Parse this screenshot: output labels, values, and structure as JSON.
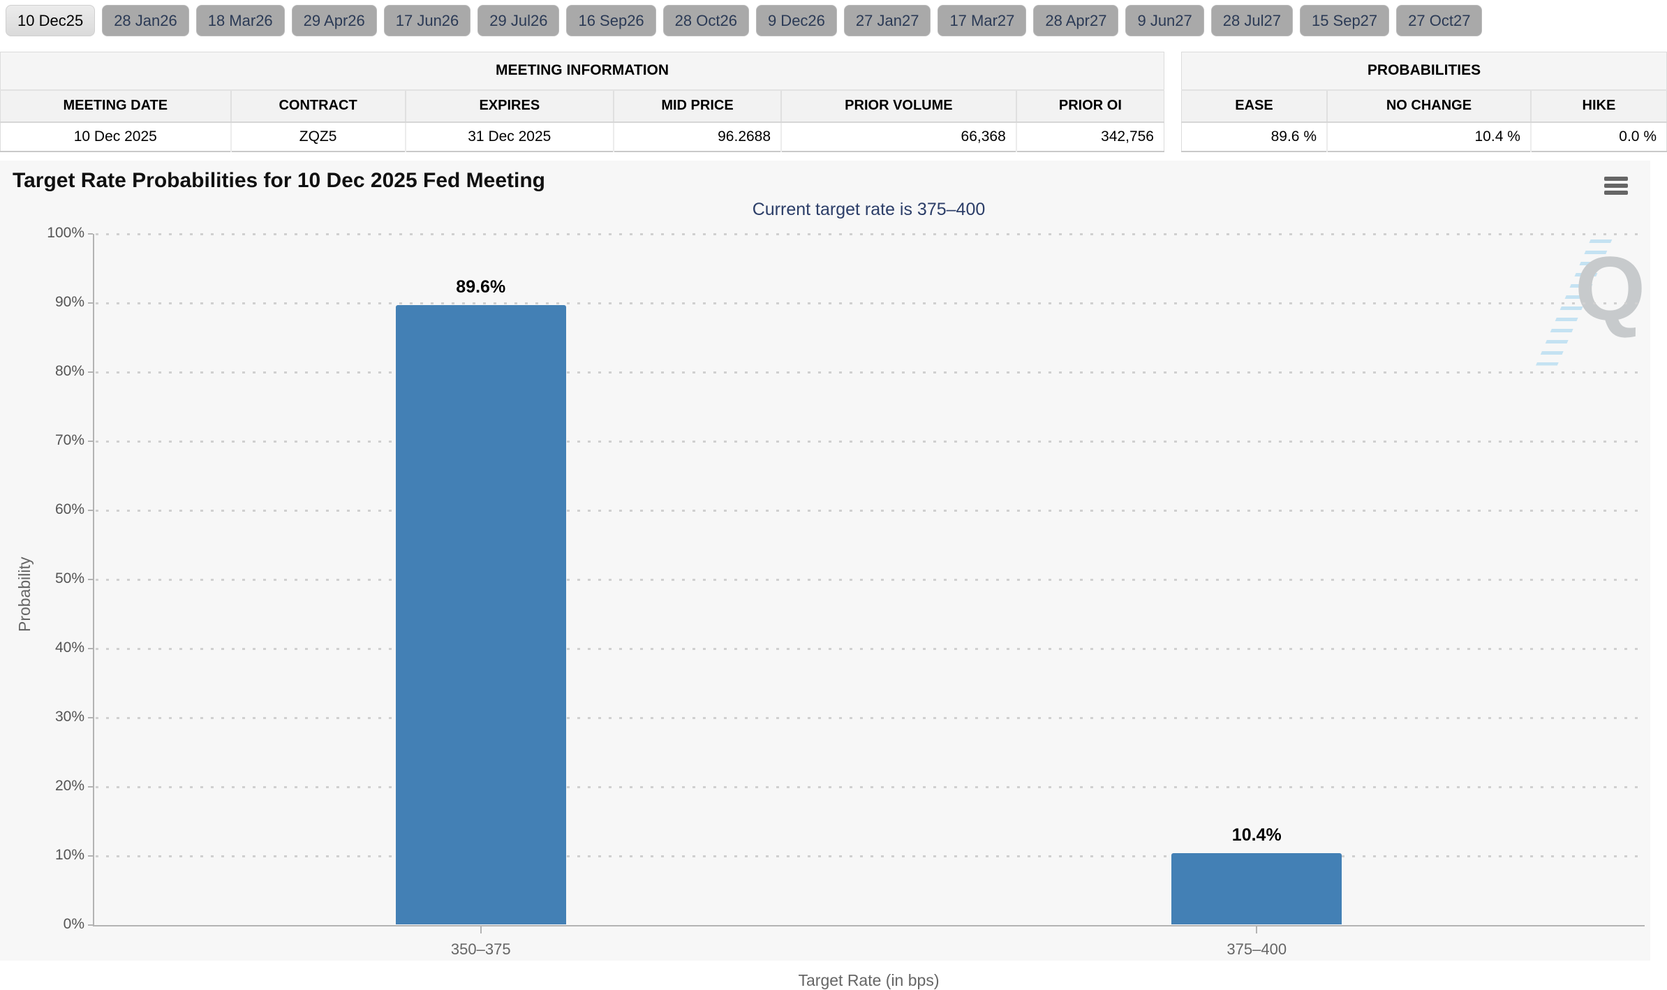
{
  "tabs": {
    "selected": "10 Dec25",
    "items": [
      "10 Dec25",
      "28 Jan26",
      "18 Mar26",
      "29 Apr26",
      "17 Jun26",
      "29 Jul26",
      "16 Sep26",
      "28 Oct26",
      "9 Dec26",
      "27 Jan27",
      "17 Mar27",
      "28 Apr27",
      "9 Jun27",
      "28 Jul27",
      "15 Sep27",
      "27 Oct27"
    ]
  },
  "meeting_information": {
    "title": "MEETING INFORMATION",
    "columns": [
      "MEETING DATE",
      "CONTRACT",
      "EXPIRES",
      "MID PRICE",
      "PRIOR VOLUME",
      "PRIOR OI"
    ],
    "row": [
      "10 Dec 2025",
      "ZQZ5",
      "31 Dec 2025",
      "96.2688",
      "66,368",
      "342,756"
    ]
  },
  "probabilities": {
    "title": "PROBABILITIES",
    "columns": [
      "EASE",
      "NO CHANGE",
      "HIKE"
    ],
    "row": [
      "89.6 %",
      "10.4 %",
      "0.0 %"
    ]
  },
  "chart": {
    "title": "Target Rate Probabilities for 10 Dec 2025 Fed Meeting",
    "subtitle": "Current target rate is 375–400",
    "menu_icon": "hamburger-menu-icon",
    "watermark_letter": "Q"
  },
  "chart_data": {
    "type": "bar",
    "title": "Target Rate Probabilities for 10 Dec 2025 Fed Meeting",
    "subtitle": "Current target rate is 375–400",
    "categories": [
      "350–375",
      "375–400"
    ],
    "values": [
      89.6,
      10.4
    ],
    "data_labels": [
      "89.6%",
      "10.4%"
    ],
    "xlabel": "Target Rate (in bps)",
    "ylabel": "Probability",
    "ylim": [
      0,
      100
    ],
    "ytick_step": 10,
    "ytick_suffix": "%",
    "grid": "dotted",
    "legend": "none",
    "bar_color": "#4380b5"
  },
  "colors": {
    "bar": "#4380b5",
    "subtitle_text": "#2c3e68",
    "chart_background": "#f7f7f7",
    "tab_unselected": "#a9a9a9",
    "tab_selected": "#e4e4e4",
    "tab_text": "#2b3a55",
    "axis_line": "#b3b3b3",
    "gridline": "#d0d0d0",
    "axis_label": "#666666"
  }
}
